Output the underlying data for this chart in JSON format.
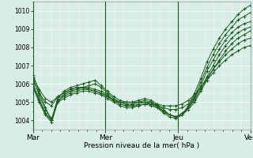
{
  "title": "",
  "xlabel": "Pression niveau de la mer( hPa )",
  "ylabel": "",
  "bg_color": "#d8ece8",
  "grid_color": "#ffffff",
  "line_color": "#1a5c1a",
  "marker_color": "#1a5c1a",
  "ylim": [
    1003.5,
    1010.5
  ],
  "yticks": [
    1004,
    1005,
    1006,
    1007,
    1008,
    1009,
    1010
  ],
  "day_ticks": [
    0,
    48,
    96,
    144
  ],
  "day_labels": [
    "Mar",
    "Mer",
    "Jeu",
    "Ven"
  ],
  "total_hours": 144,
  "series": [
    [
      1006.5,
      1005.6,
      1004.7,
      1004.0,
      1005.2,
      1005.6,
      1005.8,
      1005.9,
      1006.0,
      1006.1,
      1006.2,
      1005.9,
      1005.6,
      1005.3,
      1005.1,
      1005.0,
      1005.0,
      1005.1,
      1005.2,
      1005.1,
      1004.9,
      1004.6,
      1004.3,
      1004.2,
      1004.3,
      1004.8,
      1005.5,
      1006.3,
      1007.2,
      1007.9,
      1008.5,
      1009.0,
      1009.4,
      1009.8,
      1010.1,
      1010.3
    ],
    [
      1006.3,
      1005.4,
      1004.6,
      1004.1,
      1005.0,
      1005.4,
      1005.6,
      1005.7,
      1005.8,
      1005.9,
      1006.0,
      1005.8,
      1005.5,
      1005.2,
      1005.0,
      1004.9,
      1004.9,
      1005.0,
      1005.1,
      1005.0,
      1004.8,
      1004.5,
      1004.3,
      1004.2,
      1004.3,
      1004.7,
      1005.3,
      1006.1,
      1006.9,
      1007.6,
      1008.2,
      1008.7,
      1009.1,
      1009.5,
      1009.7,
      1009.9
    ],
    [
      1006.0,
      1005.2,
      1004.4,
      1004.0,
      1005.2,
      1005.4,
      1005.6,
      1005.7,
      1005.8,
      1005.8,
      1005.7,
      1005.6,
      1005.4,
      1005.1,
      1004.9,
      1004.8,
      1004.8,
      1004.9,
      1005.0,
      1005.0,
      1004.8,
      1004.5,
      1004.3,
      1004.2,
      1004.3,
      1004.7,
      1005.2,
      1005.9,
      1006.7,
      1007.3,
      1007.9,
      1008.4,
      1008.8,
      1009.1,
      1009.3,
      1009.4
    ],
    [
      1005.9,
      1005.1,
      1004.4,
      1004.0,
      1005.1,
      1005.3,
      1005.5,
      1005.6,
      1005.7,
      1005.7,
      1005.6,
      1005.5,
      1005.3,
      1005.1,
      1004.9,
      1004.8,
      1004.8,
      1004.8,
      1004.9,
      1004.9,
      1004.7,
      1004.5,
      1004.3,
      1004.2,
      1004.4,
      1004.7,
      1005.1,
      1005.7,
      1006.4,
      1007.0,
      1007.6,
      1008.1,
      1008.5,
      1008.8,
      1009.0,
      1009.1
    ],
    [
      1005.8,
      1005.0,
      1004.3,
      1003.9,
      1005.0,
      1005.2,
      1005.4,
      1005.5,
      1005.6,
      1005.6,
      1005.5,
      1005.4,
      1005.2,
      1005.0,
      1004.8,
      1004.7,
      1004.7,
      1004.8,
      1004.9,
      1004.8,
      1004.7,
      1004.4,
      1004.2,
      1004.1,
      1004.3,
      1004.6,
      1005.0,
      1005.6,
      1006.2,
      1006.8,
      1007.3,
      1007.8,
      1008.2,
      1008.5,
      1008.7,
      1008.9
    ],
    [
      1006.2,
      1005.5,
      1005.0,
      1004.8,
      1005.3,
      1005.5,
      1005.7,
      1005.8,
      1005.8,
      1005.7,
      1005.6,
      1005.5,
      1005.3,
      1005.1,
      1005.0,
      1004.9,
      1004.9,
      1005.0,
      1005.0,
      1004.9,
      1004.8,
      1004.7,
      1004.6,
      1004.6,
      1004.7,
      1004.9,
      1005.3,
      1005.8,
      1006.3,
      1006.8,
      1007.2,
      1007.6,
      1007.9,
      1008.2,
      1008.4,
      1008.5
    ],
    [
      1006.4,
      1005.7,
      1005.2,
      1005.0,
      1005.3,
      1005.5,
      1005.7,
      1005.8,
      1005.8,
      1005.7,
      1005.6,
      1005.5,
      1005.3,
      1005.1,
      1005.0,
      1005.0,
      1005.0,
      1005.0,
      1005.0,
      1004.9,
      1004.9,
      1004.8,
      1004.8,
      1004.8,
      1004.9,
      1005.1,
      1005.4,
      1005.8,
      1006.2,
      1006.6,
      1007.0,
      1007.3,
      1007.6,
      1007.8,
      1008.0,
      1008.1
    ]
  ]
}
